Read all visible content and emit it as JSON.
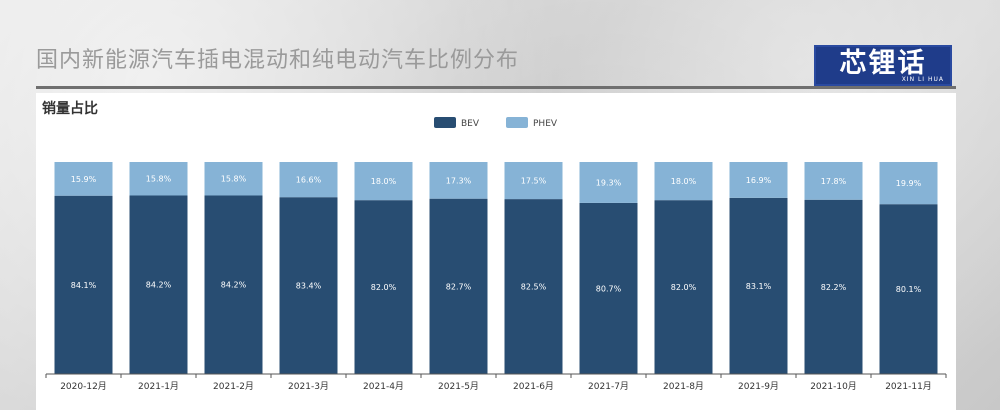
{
  "page": {
    "title": "国内新能源汽车插电混动和纯电动汽车比例分布"
  },
  "logo": {
    "text": "芯锂话",
    "subtext": "XIN LI HUA"
  },
  "colors": {
    "bev": "#284d72",
    "phev": "#86b3d6"
  },
  "chart_data": {
    "type": "bar",
    "stacked": true,
    "title": "销量占比",
    "xlabel": "",
    "ylabel": "",
    "ylim": [
      0,
      100
    ],
    "grid": false,
    "legend_position": "top-center",
    "categories": [
      "2020-12月",
      "2021-1月",
      "2021-2月",
      "2021-3月",
      "2021-4月",
      "2021-5月",
      "2021-6月",
      "2021-7月",
      "2021-8月",
      "2021-9月",
      "2021-10月",
      "2021-11月"
    ],
    "series": [
      {
        "name": "BEV",
        "values": [
          84.1,
          84.2,
          84.2,
          83.4,
          82.0,
          82.7,
          82.5,
          80.7,
          82.0,
          83.1,
          82.2,
          80.1
        ],
        "labels": [
          "84.1%",
          "84.2%",
          "84.2%",
          "83.4%",
          "82.0%",
          "82.7%",
          "82.5%",
          "80.7%",
          "82.0%",
          "83.1%",
          "82.2%",
          "80.1%"
        ]
      },
      {
        "name": "PHEV",
        "values": [
          15.9,
          15.8,
          15.8,
          16.6,
          18.0,
          17.3,
          17.5,
          19.3,
          18.0,
          16.9,
          17.8,
          19.9
        ],
        "labels": [
          "15.9%",
          "15.8%",
          "15.8%",
          "16.6%",
          "18.0%",
          "17.3%",
          "17.5%",
          "19.3%",
          "18.0%",
          "16.9%",
          "17.8%",
          "19.9%"
        ]
      }
    ]
  }
}
